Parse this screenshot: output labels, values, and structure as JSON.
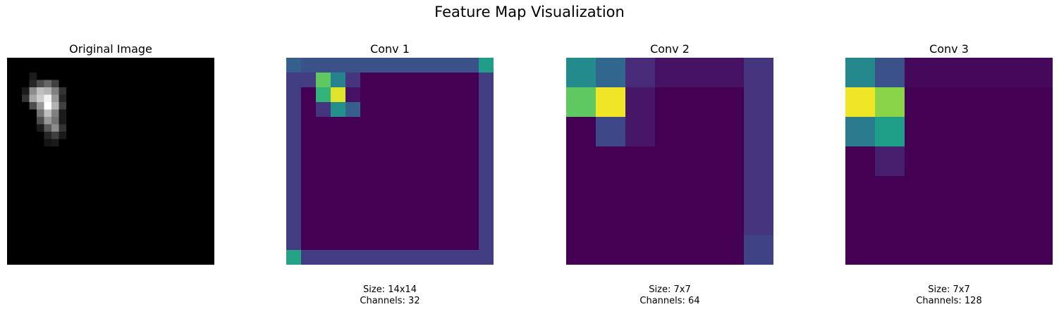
{
  "figure": {
    "title": "Feature Map Visualization"
  },
  "colormaps": {
    "gray": [
      "#000000",
      "#ffffff"
    ],
    "viridis": [
      "#440154",
      "#482878",
      "#3e4989",
      "#31688e",
      "#26828e",
      "#1f9e89",
      "#35b779",
      "#6ece58",
      "#b5de2b",
      "#fde725"
    ]
  },
  "chart_data": [
    {
      "type": "heatmap",
      "title": "Original Image",
      "colormap": "gray",
      "rows": 28,
      "cols": 28,
      "vrange": [
        0,
        1
      ],
      "default": 0,
      "cells": [
        [
          2,
          3,
          0.1
        ],
        [
          3,
          3,
          0.15
        ],
        [
          3,
          4,
          0.3
        ],
        [
          3,
          5,
          0.4
        ],
        [
          3,
          6,
          0.25
        ],
        [
          4,
          2,
          0.1
        ],
        [
          4,
          3,
          0.55
        ],
        [
          4,
          4,
          0.75
        ],
        [
          4,
          5,
          0.7
        ],
        [
          4,
          6,
          0.5
        ],
        [
          4,
          7,
          0.2
        ],
        [
          5,
          2,
          0.2
        ],
        [
          5,
          3,
          0.65
        ],
        [
          5,
          4,
          0.8
        ],
        [
          5,
          5,
          0.95
        ],
        [
          5,
          6,
          0.6
        ],
        [
          5,
          7,
          0.15
        ],
        [
          6,
          3,
          0.3
        ],
        [
          6,
          4,
          0.6
        ],
        [
          6,
          5,
          1.0
        ],
        [
          6,
          6,
          0.7
        ],
        [
          6,
          7,
          0.25
        ],
        [
          7,
          4,
          0.45
        ],
        [
          7,
          5,
          0.75
        ],
        [
          7,
          6,
          0.5
        ],
        [
          7,
          7,
          0.1
        ],
        [
          8,
          4,
          0.3
        ],
        [
          8,
          5,
          0.6
        ],
        [
          8,
          6,
          0.45
        ],
        [
          8,
          7,
          0.1
        ],
        [
          9,
          4,
          0.1
        ],
        [
          9,
          5,
          0.35
        ],
        [
          9,
          6,
          0.55
        ],
        [
          9,
          7,
          0.2
        ],
        [
          10,
          5,
          0.15
        ],
        [
          10,
          6,
          0.25
        ],
        [
          10,
          7,
          0.1
        ],
        [
          11,
          5,
          0.08
        ],
        [
          11,
          6,
          0.1
        ]
      ],
      "caption": []
    },
    {
      "type": "heatmap",
      "title": "Conv 1",
      "colormap": "viridis",
      "rows": 14,
      "cols": 14,
      "vrange": [
        0,
        1
      ],
      "default": 0,
      "cells": [
        [
          0,
          0,
          0.3
        ],
        [
          0,
          1,
          0.25
        ],
        [
          0,
          2,
          0.25
        ],
        [
          0,
          3,
          0.25
        ],
        [
          0,
          4,
          0.25
        ],
        [
          0,
          5,
          0.25
        ],
        [
          0,
          6,
          0.25
        ],
        [
          0,
          7,
          0.25
        ],
        [
          0,
          8,
          0.25
        ],
        [
          0,
          9,
          0.25
        ],
        [
          0,
          10,
          0.25
        ],
        [
          0,
          11,
          0.25
        ],
        [
          0,
          12,
          0.25
        ],
        [
          0,
          13,
          0.55
        ],
        [
          1,
          0,
          0.18
        ],
        [
          1,
          1,
          0.18
        ],
        [
          1,
          2,
          0.75
        ],
        [
          1,
          3,
          0.45
        ],
        [
          1,
          4,
          0.15
        ],
        [
          1,
          13,
          0.18
        ],
        [
          2,
          0,
          0.18
        ],
        [
          2,
          2,
          0.65
        ],
        [
          2,
          3,
          0.95
        ],
        [
          2,
          4,
          0.05
        ],
        [
          2,
          13,
          0.18
        ],
        [
          3,
          0,
          0.18
        ],
        [
          3,
          2,
          0.15
        ],
        [
          3,
          3,
          0.5
        ],
        [
          3,
          4,
          0.3
        ],
        [
          3,
          13,
          0.18
        ],
        [
          4,
          0,
          0.18
        ],
        [
          4,
          13,
          0.18
        ],
        [
          5,
          0,
          0.18
        ],
        [
          5,
          13,
          0.18
        ],
        [
          6,
          0,
          0.18
        ],
        [
          6,
          13,
          0.18
        ],
        [
          7,
          0,
          0.18
        ],
        [
          7,
          13,
          0.18
        ],
        [
          8,
          0,
          0.18
        ],
        [
          8,
          13,
          0.18
        ],
        [
          9,
          0,
          0.18
        ],
        [
          9,
          13,
          0.18
        ],
        [
          10,
          0,
          0.18
        ],
        [
          10,
          13,
          0.18
        ],
        [
          11,
          0,
          0.18
        ],
        [
          11,
          13,
          0.18
        ],
        [
          12,
          0,
          0.18
        ],
        [
          12,
          13,
          0.18
        ],
        [
          13,
          0,
          0.58
        ],
        [
          13,
          1,
          0.18
        ],
        [
          13,
          2,
          0.18
        ],
        [
          13,
          3,
          0.18
        ],
        [
          13,
          4,
          0.18
        ],
        [
          13,
          5,
          0.18
        ],
        [
          13,
          6,
          0.18
        ],
        [
          13,
          7,
          0.18
        ],
        [
          13,
          8,
          0.18
        ],
        [
          13,
          9,
          0.18
        ],
        [
          13,
          10,
          0.18
        ],
        [
          13,
          11,
          0.18
        ],
        [
          13,
          12,
          0.18
        ],
        [
          13,
          13,
          0.18
        ]
      ],
      "caption": [
        "Size: 14x14",
        "Channels: 32"
      ]
    },
    {
      "type": "heatmap",
      "title": "Conv 2",
      "colormap": "viridis",
      "rows": 7,
      "cols": 7,
      "vrange": [
        0,
        1
      ],
      "default": 0,
      "cells": [
        [
          0,
          0,
          0.48
        ],
        [
          0,
          1,
          0.33
        ],
        [
          0,
          2,
          0.12
        ],
        [
          0,
          3,
          0.05
        ],
        [
          0,
          4,
          0.05
        ],
        [
          0,
          5,
          0.05
        ],
        [
          0,
          6,
          0.15
        ],
        [
          1,
          0,
          0.75
        ],
        [
          1,
          1,
          0.98
        ],
        [
          1,
          2,
          0.06
        ],
        [
          1,
          6,
          0.15
        ],
        [
          2,
          1,
          0.22
        ],
        [
          2,
          2,
          0.06
        ],
        [
          2,
          6,
          0.15
        ],
        [
          3,
          6,
          0.15
        ],
        [
          4,
          6,
          0.15
        ],
        [
          5,
          6,
          0.15
        ],
        [
          6,
          6,
          0.2
        ]
      ],
      "caption": [
        "Size: 7x7",
        "Channels: 64"
      ]
    },
    {
      "type": "heatmap",
      "title": "Conv 3",
      "colormap": "viridis",
      "rows": 7,
      "cols": 7,
      "vrange": [
        0,
        1
      ],
      "default": 0,
      "cells": [
        [
          0,
          0,
          0.47
        ],
        [
          0,
          1,
          0.25
        ],
        [
          0,
          2,
          0.02
        ],
        [
          0,
          3,
          0.02
        ],
        [
          0,
          4,
          0.02
        ],
        [
          0,
          5,
          0.02
        ],
        [
          0,
          6,
          0.02
        ],
        [
          1,
          0,
          0.98
        ],
        [
          1,
          1,
          0.82
        ],
        [
          2,
          0,
          0.42
        ],
        [
          2,
          1,
          0.56
        ],
        [
          3,
          1,
          0.08
        ]
      ],
      "caption": [
        "Size: 7x7",
        "Channels: 128"
      ]
    }
  ]
}
